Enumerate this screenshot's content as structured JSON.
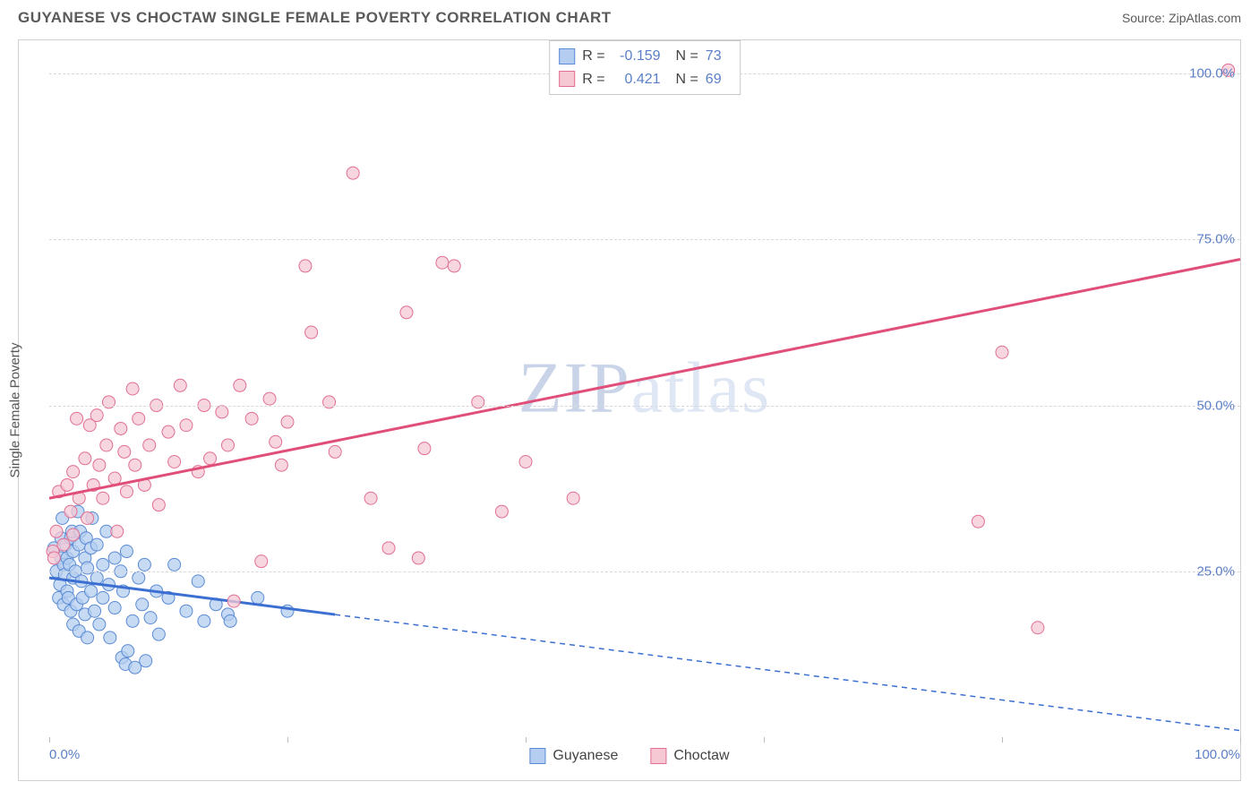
{
  "header": {
    "title": "GUYANESE VS CHOCTAW SINGLE FEMALE POVERTY CORRELATION CHART",
    "source_label": "Source:",
    "source_name": "ZipAtlas.com"
  },
  "chart": {
    "type": "scatter",
    "ylabel": "Single Female Poverty",
    "watermark": "ZIPatlas",
    "xlim": [
      0,
      100
    ],
    "ylim": [
      0,
      105
    ],
    "ytick_values": [
      25,
      50,
      75,
      100
    ],
    "ytick_labels": [
      "25.0%",
      "50.0%",
      "75.0%",
      "100.0%"
    ],
    "x_major_ticks": [
      0,
      20,
      40,
      60,
      80,
      100
    ],
    "x_tick_labels": {
      "0": "0.0%",
      "100": "100.0%"
    },
    "grid_color": "#d8d8d8",
    "background_color": "#ffffff",
    "axis_text_color": "#5b7fc7",
    "series": [
      {
        "name": "Guyanese",
        "marker_fill": "#b4cdf0",
        "marker_stroke": "#5b8bd4",
        "marker_radius": 7,
        "marker_opacity": 0.75,
        "line_color": "#3b6fd1",
        "line_width": 3,
        "r_value": "-0.159",
        "n_value": "73",
        "trend": {
          "x1": 0,
          "y1": 24,
          "x2": 100,
          "y2": 1,
          "solid_until_x": 24
        },
        "points": [
          [
            0.4,
            28.5
          ],
          [
            0.6,
            25
          ],
          [
            0.8,
            21
          ],
          [
            0.9,
            23
          ],
          [
            1.0,
            30
          ],
          [
            1.0,
            27
          ],
          [
            1.1,
            33
          ],
          [
            1.2,
            26
          ],
          [
            1.2,
            20
          ],
          [
            1.3,
            24.5
          ],
          [
            1.4,
            29
          ],
          [
            1.5,
            27
          ],
          [
            1.5,
            22
          ],
          [
            1.6,
            21
          ],
          [
            1.7,
            26
          ],
          [
            1.8,
            30
          ],
          [
            1.8,
            19
          ],
          [
            1.9,
            31
          ],
          [
            2.0,
            28
          ],
          [
            2.0,
            17
          ],
          [
            2.0,
            24
          ],
          [
            2.2,
            25
          ],
          [
            2.3,
            20
          ],
          [
            2.4,
            34
          ],
          [
            2.5,
            29
          ],
          [
            2.5,
            16
          ],
          [
            2.6,
            31
          ],
          [
            2.7,
            23.5
          ],
          [
            2.8,
            21
          ],
          [
            3.0,
            27
          ],
          [
            3.0,
            18.5
          ],
          [
            3.1,
            30
          ],
          [
            3.2,
            25.5
          ],
          [
            3.2,
            15
          ],
          [
            3.5,
            22
          ],
          [
            3.5,
            28.5
          ],
          [
            3.6,
            33
          ],
          [
            3.8,
            19
          ],
          [
            4.0,
            24
          ],
          [
            4.0,
            29
          ],
          [
            4.2,
            17
          ],
          [
            4.5,
            26
          ],
          [
            4.5,
            21
          ],
          [
            4.8,
            31
          ],
          [
            5.0,
            23
          ],
          [
            5.1,
            15
          ],
          [
            5.5,
            27
          ],
          [
            5.5,
            19.5
          ],
          [
            6.0,
            25
          ],
          [
            6.1,
            12
          ],
          [
            6.2,
            22
          ],
          [
            6.4,
            11
          ],
          [
            6.5,
            28
          ],
          [
            6.6,
            13
          ],
          [
            7.0,
            17.5
          ],
          [
            7.2,
            10.5
          ],
          [
            7.5,
            24
          ],
          [
            7.8,
            20
          ],
          [
            8.0,
            26
          ],
          [
            8.1,
            11.5
          ],
          [
            8.5,
            18
          ],
          [
            9.0,
            22
          ],
          [
            9.2,
            15.5
          ],
          [
            10.0,
            21
          ],
          [
            10.5,
            26
          ],
          [
            11.5,
            19
          ],
          [
            12.5,
            23.5
          ],
          [
            13.0,
            17.5
          ],
          [
            14.0,
            20
          ],
          [
            15.0,
            18.5
          ],
          [
            15.2,
            17.5
          ],
          [
            17.5,
            21
          ],
          [
            20.0,
            19
          ]
        ]
      },
      {
        "name": "Choctaw",
        "marker_fill": "#f6c8d4",
        "marker_stroke": "#e16f92",
        "marker_radius": 7,
        "marker_opacity": 0.75,
        "line_color": "#e04f7a",
        "line_width": 3,
        "r_value": "0.421",
        "n_value": "69",
        "trend": {
          "x1": 0,
          "y1": 36,
          "x2": 100,
          "y2": 72,
          "solid_until_x": 100
        },
        "points": [
          [
            0.3,
            28
          ],
          [
            0.4,
            27
          ],
          [
            0.6,
            31
          ],
          [
            0.8,
            37
          ],
          [
            1.2,
            29
          ],
          [
            1.5,
            38
          ],
          [
            1.8,
            34
          ],
          [
            2.0,
            40
          ],
          [
            2.0,
            30.5
          ],
          [
            2.3,
            48
          ],
          [
            2.5,
            36
          ],
          [
            3.0,
            42
          ],
          [
            3.2,
            33
          ],
          [
            3.4,
            47
          ],
          [
            3.7,
            38
          ],
          [
            4.0,
            48.5
          ],
          [
            4.2,
            41
          ],
          [
            4.5,
            36
          ],
          [
            4.8,
            44
          ],
          [
            5.0,
            50.5
          ],
          [
            5.5,
            39
          ],
          [
            5.7,
            31
          ],
          [
            6.0,
            46.5
          ],
          [
            6.3,
            43
          ],
          [
            6.5,
            37
          ],
          [
            7.0,
            52.5
          ],
          [
            7.2,
            41
          ],
          [
            7.5,
            48
          ],
          [
            8.0,
            38
          ],
          [
            8.4,
            44
          ],
          [
            9.0,
            50
          ],
          [
            9.2,
            35
          ],
          [
            10.0,
            46
          ],
          [
            10.5,
            41.5
          ],
          [
            11.0,
            53
          ],
          [
            11.5,
            47
          ],
          [
            12.5,
            40
          ],
          [
            13.0,
            50
          ],
          [
            13.5,
            42
          ],
          [
            14.5,
            49
          ],
          [
            15.0,
            44
          ],
          [
            15.5,
            20.5
          ],
          [
            16.0,
            53
          ],
          [
            17.0,
            48
          ],
          [
            17.8,
            26.5
          ],
          [
            18.5,
            51
          ],
          [
            19.0,
            44.5
          ],
          [
            19.5,
            41
          ],
          [
            20.0,
            47.5
          ],
          [
            21.5,
            71
          ],
          [
            22.0,
            61
          ],
          [
            23.5,
            50.5
          ],
          [
            24.0,
            43
          ],
          [
            25.5,
            85
          ],
          [
            27.0,
            36
          ],
          [
            28.5,
            28.5
          ],
          [
            30.0,
            64
          ],
          [
            31.5,
            43.5
          ],
          [
            33.0,
            71.5
          ],
          [
            34.0,
            71
          ],
          [
            36.0,
            50.5
          ],
          [
            38.0,
            34
          ],
          [
            40.0,
            41.5
          ],
          [
            44.0,
            36
          ],
          [
            78.0,
            32.5
          ],
          [
            80.0,
            58
          ],
          [
            83.0,
            16.5
          ],
          [
            99.0,
            100.5
          ],
          [
            31.0,
            27
          ]
        ]
      }
    ],
    "legend_bottom": [
      {
        "label": "Guyanese",
        "fill": "#b4cdf0",
        "stroke": "#5b8bd4"
      },
      {
        "label": "Choctaw",
        "fill": "#f6c8d4",
        "stroke": "#e16f92"
      }
    ]
  }
}
